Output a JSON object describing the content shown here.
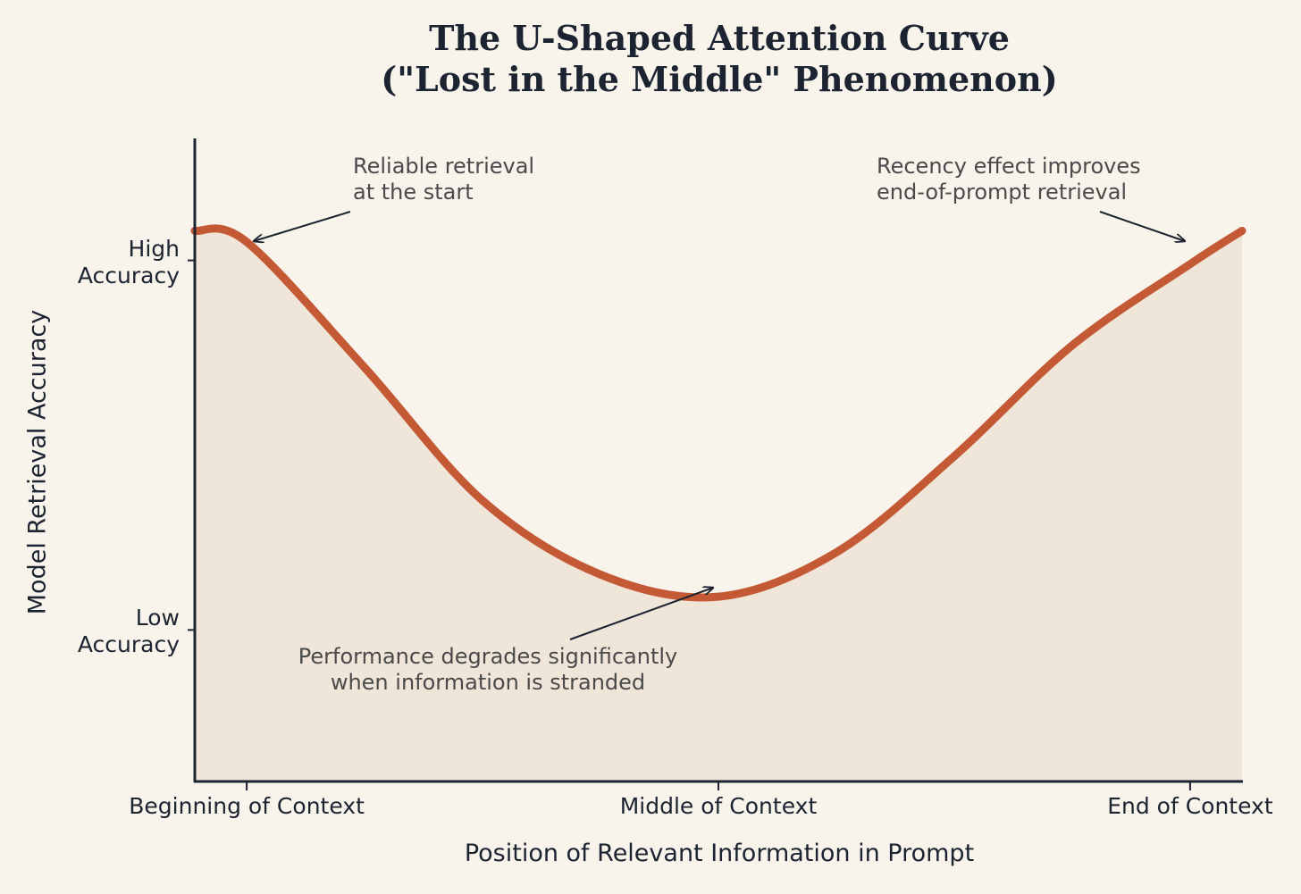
{
  "chart_data": {
    "type": "line",
    "title": "The U-Shaped Attention Curve\n(\"Lost in the Middle\" Phenomenon)",
    "x_label": "Position of Relevant Information in Prompt",
    "y_label": "Model Retrieval Accuracy",
    "xlim": [
      -0.11,
      2.11
    ],
    "ylim": [
      -0.41,
      1.33
    ],
    "xticks": [
      {
        "value": 0,
        "label": "Beginning of Context"
      },
      {
        "value": 1,
        "label": "Middle of Context"
      },
      {
        "value": 2,
        "label": "End of Context"
      }
    ],
    "yticks": [
      {
        "value": 0,
        "label": "Low\nAccuracy"
      },
      {
        "value": 1,
        "label": "High\nAccuracy"
      }
    ],
    "series": [
      {
        "color": "#c45a35",
        "x": [
          -0.11,
          0,
          0.25,
          0.5,
          0.75,
          1,
          1.25,
          1.5,
          1.75,
          2,
          2.11
        ],
        "values": [
          1.08,
          1.05,
          0.71,
          0.35,
          0.15,
          0.09,
          0.21,
          0.47,
          0.77,
          0.99,
          1.08
        ]
      }
    ],
    "fill_color": "#f0e5d9",
    "annotations": [
      "Reliable retrieval\nat the start",
      "Recency effect improves\nend-of-prompt retrieval",
      "Performance degrades significantly\nwhen information is stranded"
    ]
  }
}
